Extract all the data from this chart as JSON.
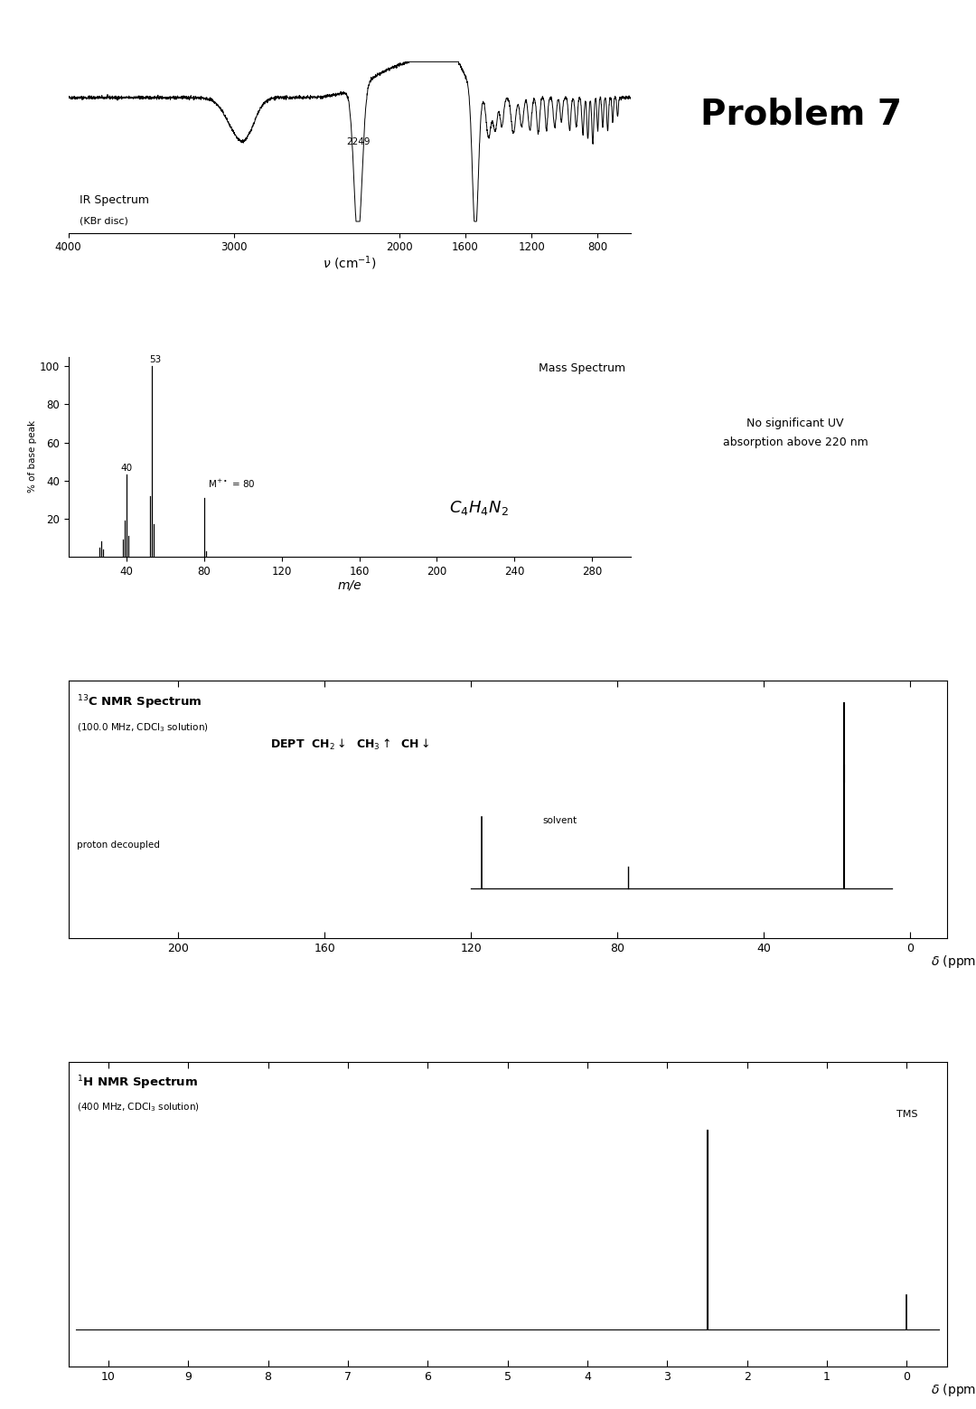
{
  "title": "Problem 7",
  "ir": {
    "label": "IR Spectrum",
    "sublabel": "(KBr disc)",
    "xlabel": "V (cm⁻¹)",
    "annotation": "2249",
    "xticks": [
      4000,
      3000,
      2000,
      1600,
      1200,
      800
    ]
  },
  "ms": {
    "title": "Mass Spectrum",
    "xlabel": "m/e",
    "ylabel": "% of base peak",
    "xlim": [
      10,
      300
    ],
    "ylim": [
      0,
      100
    ],
    "xticks": [
      40,
      80,
      120,
      160,
      200,
      240,
      280
    ],
    "yticks": [
      20,
      40,
      60,
      80,
      100
    ],
    "peaks": [
      {
        "mz": 26,
        "intensity": 5
      },
      {
        "mz": 27,
        "intensity": 8
      },
      {
        "mz": 28,
        "intensity": 4
      },
      {
        "mz": 38,
        "intensity": 9
      },
      {
        "mz": 39,
        "intensity": 19
      },
      {
        "mz": 40,
        "intensity": 43
      },
      {
        "mz": 41,
        "intensity": 11
      },
      {
        "mz": 52,
        "intensity": 32
      },
      {
        "mz": 53,
        "intensity": 100
      },
      {
        "mz": 54,
        "intensity": 17
      },
      {
        "mz": 80,
        "intensity": 31
      },
      {
        "mz": 81,
        "intensity": 3
      }
    ],
    "uv_note": "No significant UV\nabsorption above 220 nm",
    "formula": "C$_4$H$_4$N$_2$"
  },
  "c13": {
    "title": "$^{13}$C NMR Spectrum",
    "subtitle": "(100.0 MHz, CDCl$_3$ solution)",
    "dept_text": "DEPT  CH$_2$$\\downarrow$  CH$_3$$\\uparrow$  CH$\\downarrow$",
    "xlabel": "$\\delta$ (ppm)",
    "xticks": [
      200,
      160,
      120,
      80,
      40,
      0
    ],
    "dept_peak_ppm": 18,
    "pd_peak_ppm": 117,
    "solvent_ppm": 77,
    "main_peak_ppm": 18
  },
  "h1": {
    "title": "$^1$H NMR Spectrum",
    "subtitle": "(400 MHz, CDCl$_3$ solution)",
    "xlabel": "$\\delta$ (ppm)",
    "xticks": [
      10,
      9,
      8,
      7,
      6,
      5,
      4,
      3,
      2,
      1,
      0
    ],
    "peak_ppm": 2.5,
    "tms_ppm": 0.0,
    "tms_label": "TMS"
  }
}
